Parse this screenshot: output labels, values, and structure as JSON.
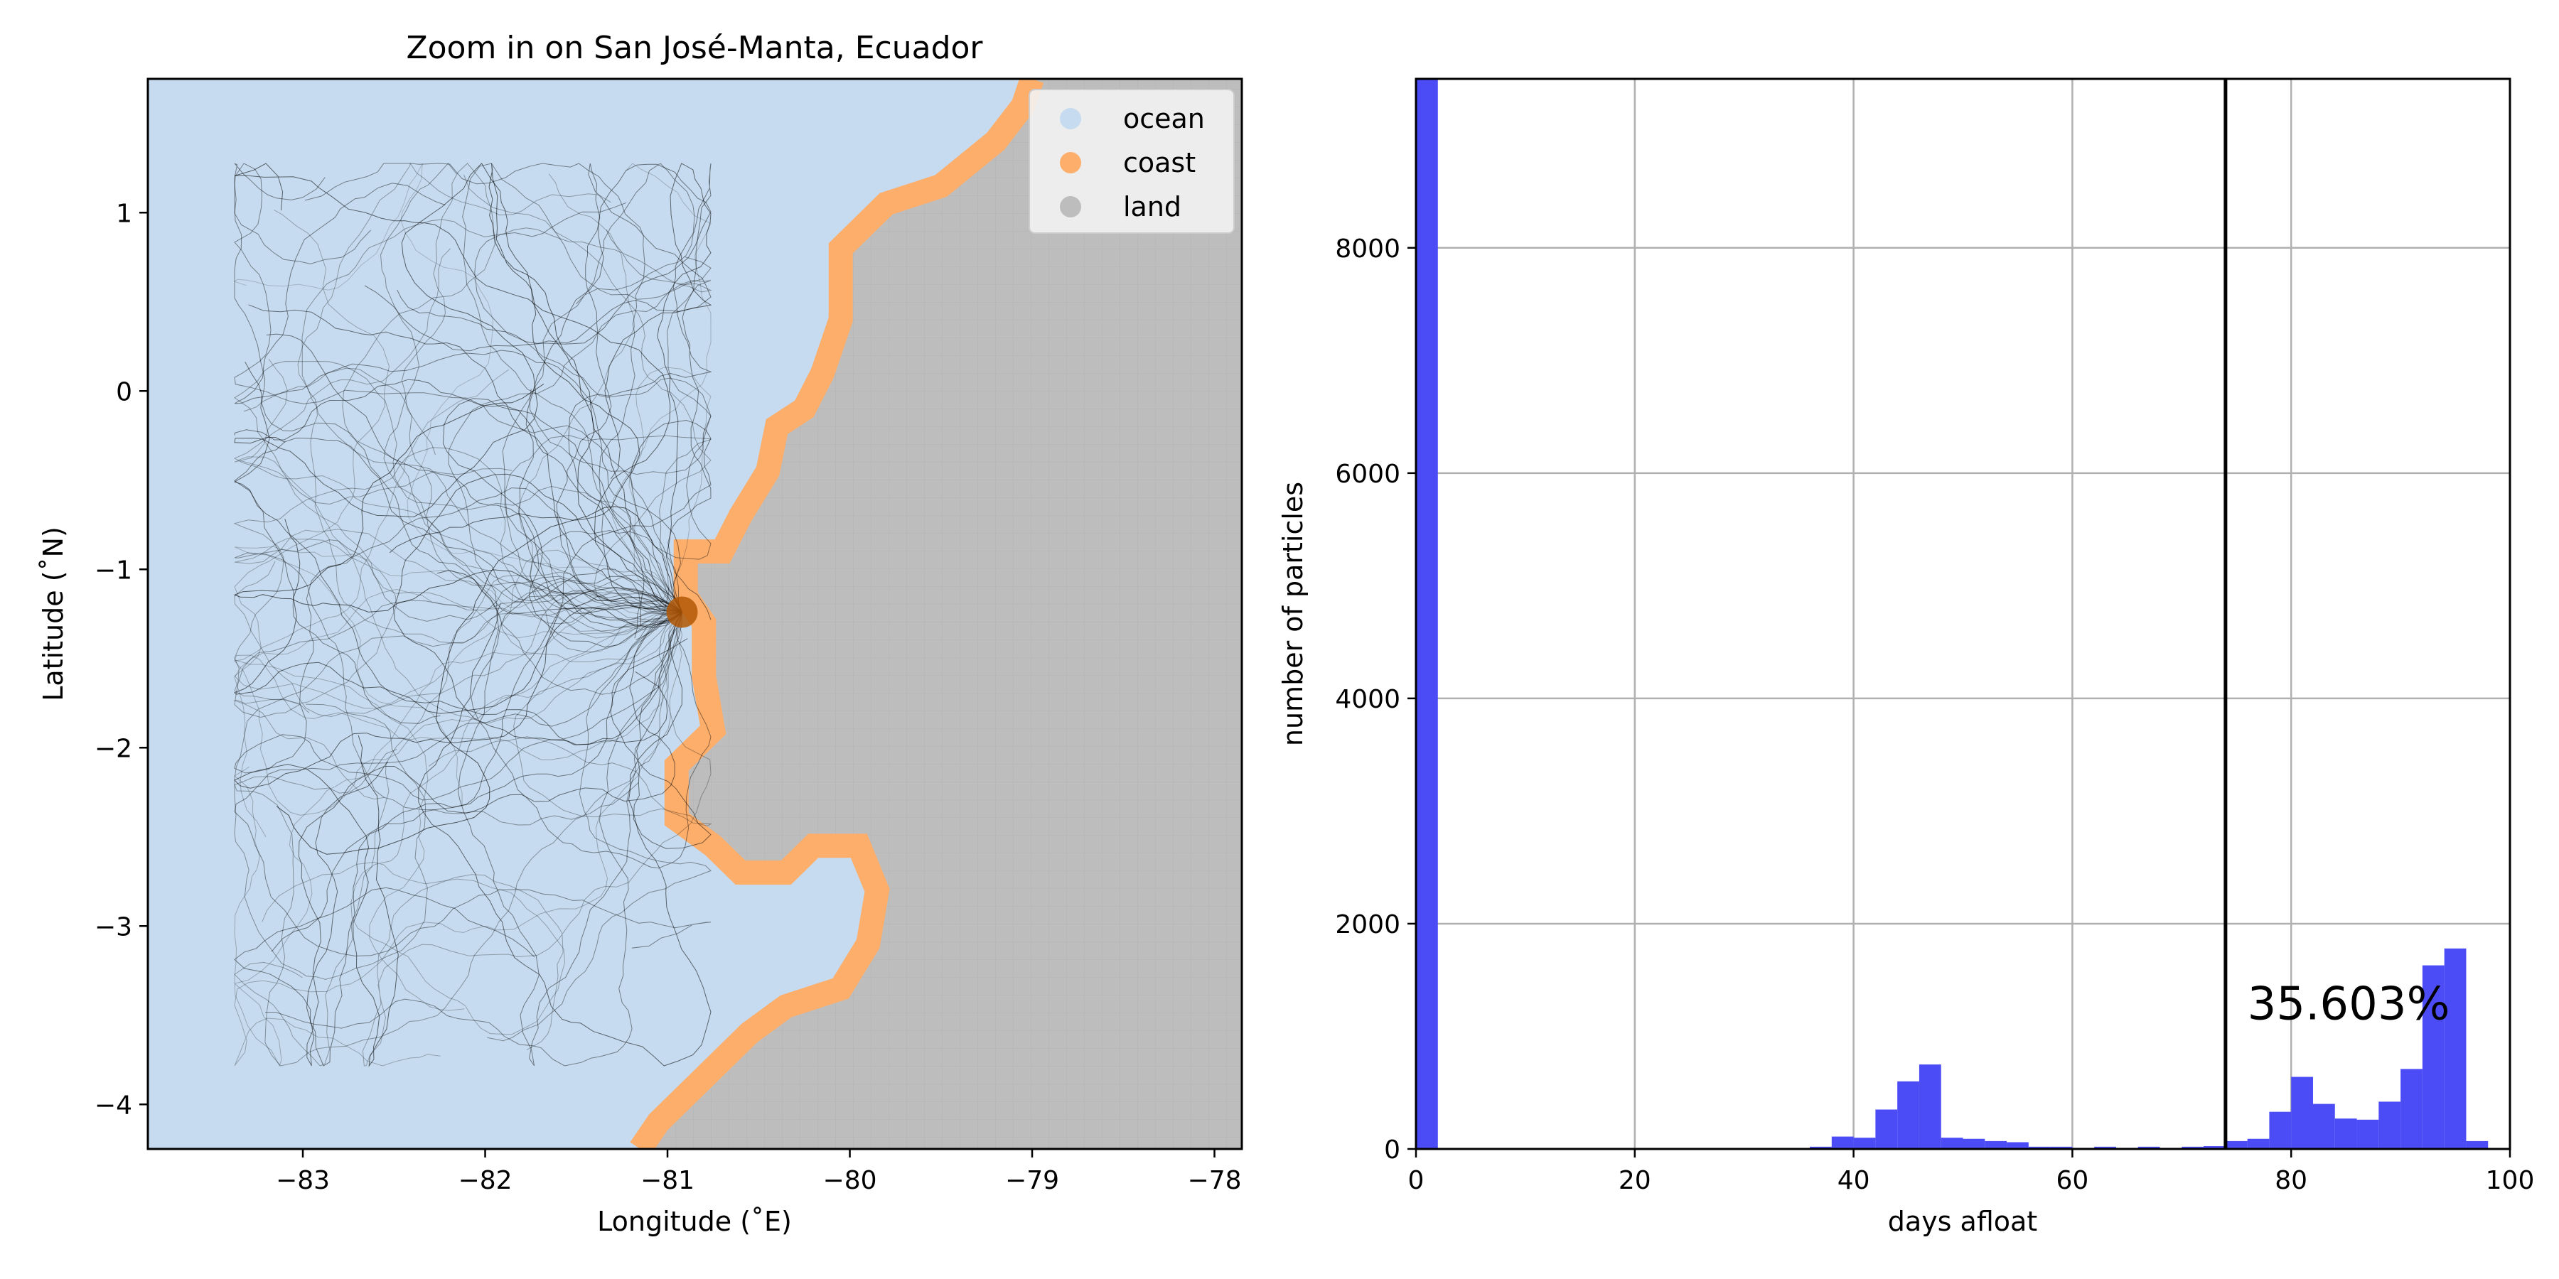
{
  "chart_data": [
    {
      "type": "map",
      "title": "Zoom in on San José-Manta, Ecuador",
      "xlabel": "Longitude (˚E)",
      "ylabel": "Latitude (˚N)",
      "xlim": [
        -83.85,
        -77.85
      ],
      "ylim": [
        -4.25,
        1.75
      ],
      "xticks": [
        -83,
        -82,
        -81,
        -80,
        -79,
        -78
      ],
      "yticks": [
        1,
        0,
        -1,
        -2,
        -3,
        -4
      ],
      "xtick_labels": [
        "−83",
        "−82",
        "−81",
        "−80",
        "−79",
        "−78"
      ],
      "ytick_labels": [
        "1",
        "0",
        "−1",
        "−2",
        "−3",
        "−4"
      ],
      "grid": false,
      "legend_position": "top-right",
      "legend": [
        {
          "label": "ocean",
          "color": "#c6dbef"
        },
        {
          "label": "coast",
          "color": "#fdae6b"
        },
        {
          "label": "land",
          "color": "#bdbdbd"
        }
      ],
      "release_point": {
        "lon": -80.92,
        "lat": -1.24
      },
      "coastline": [
        [
          -79.0,
          1.75
        ],
        [
          -79.05,
          1.6
        ],
        [
          -79.2,
          1.4
        ],
        [
          -79.5,
          1.15
        ],
        [
          -79.8,
          1.05
        ],
        [
          -80.05,
          0.8
        ],
        [
          -80.05,
          0.4
        ],
        [
          -80.15,
          0.1
        ],
        [
          -80.25,
          -0.1
        ],
        [
          -80.4,
          -0.2
        ],
        [
          -80.45,
          -0.45
        ],
        [
          -80.6,
          -0.7
        ],
        [
          -80.7,
          -0.9
        ],
        [
          -80.9,
          -0.9
        ],
        [
          -80.9,
          -1.15
        ],
        [
          -80.8,
          -1.3
        ],
        [
          -80.8,
          -1.6
        ],
        [
          -80.75,
          -1.9
        ],
        [
          -80.95,
          -2.1
        ],
        [
          -80.95,
          -2.4
        ],
        [
          -80.75,
          -2.55
        ],
        [
          -80.6,
          -2.7
        ],
        [
          -80.35,
          -2.7
        ],
        [
          -80.2,
          -2.55
        ],
        [
          -79.95,
          -2.55
        ],
        [
          -79.85,
          -2.8
        ],
        [
          -79.9,
          -3.1
        ],
        [
          -80.05,
          -3.35
        ],
        [
          -80.35,
          -3.45
        ],
        [
          -80.55,
          -3.6
        ],
        [
          -80.8,
          -3.85
        ],
        [
          -81.05,
          -4.1
        ],
        [
          -81.15,
          -4.25
        ]
      ]
    },
    {
      "type": "histogram",
      "xlabel": "days afloat",
      "ylabel": "number of particles",
      "xlim": [
        0,
        100
      ],
      "ylim": [
        0,
        9500
      ],
      "xticks": [
        0,
        20,
        40,
        60,
        80,
        100
      ],
      "yticks": [
        0,
        2000,
        4000,
        6000,
        8000
      ],
      "grid": true,
      "bar_color": "#4c4cf6",
      "bin_width": 2,
      "bin_start": 0,
      "values": [
        9500,
        0,
        0,
        0,
        0,
        0,
        0,
        0,
        0,
        0,
        0,
        0,
        0,
        0,
        0,
        0,
        0,
        0,
        20,
        110,
        100,
        350,
        600,
        750,
        100,
        90,
        70,
        60,
        20,
        20,
        10,
        20,
        10,
        20,
        10,
        20,
        25,
        70,
        90,
        330,
        640,
        400,
        270,
        260,
        420,
        710,
        1630,
        1780,
        70,
        0
      ],
      "vline": {
        "x": 74,
        "color": "#000000"
      },
      "annotation": {
        "text": "35.603%",
        "x": 76,
        "y": 1150
      }
    }
  ]
}
